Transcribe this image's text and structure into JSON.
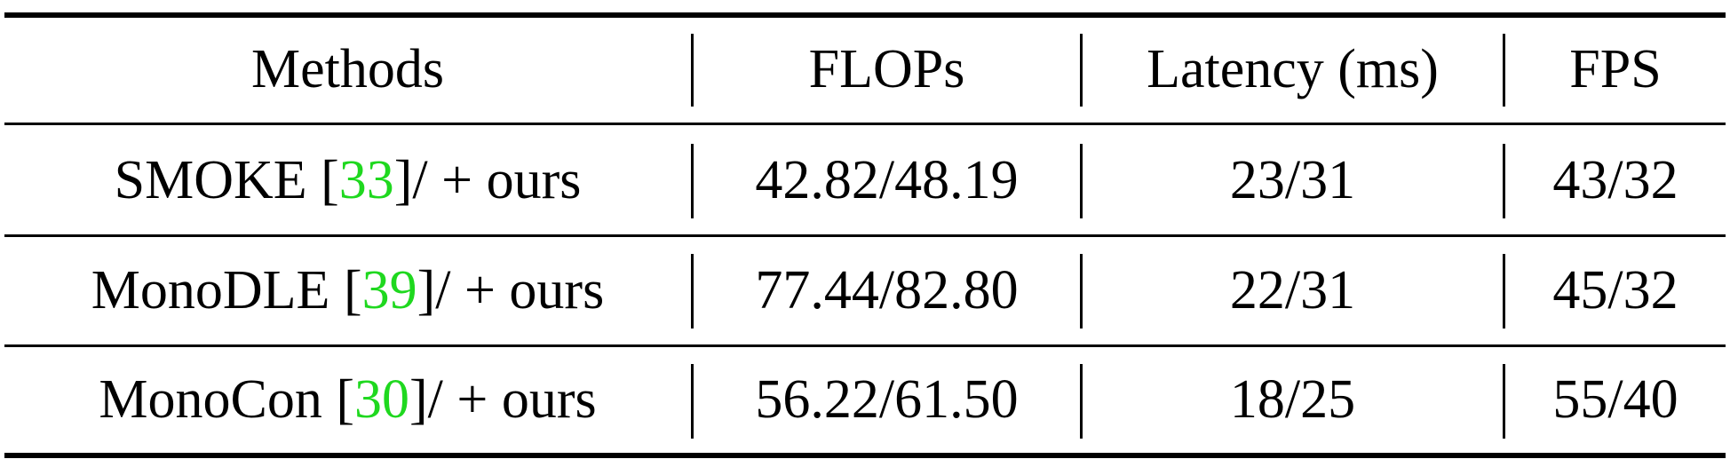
{
  "table": {
    "headers": [
      "Methods",
      "FLOPs",
      "Latency (ms)",
      "FPS"
    ],
    "rows": [
      {
        "method": "SMOKE",
        "cite": "33",
        "suffix": "]/ + ours",
        "flops": "42.82/48.19",
        "latency": "23/31",
        "fps": "43/32"
      },
      {
        "method": "MonoDLE",
        "cite": "39",
        "suffix": "]/ + ours",
        "flops": "77.44/82.80",
        "latency": "22/31",
        "fps": "45/32"
      },
      {
        "method": "MonoCon",
        "cite": "30",
        "suffix": "]/ + ours",
        "flops": "56.22/61.50",
        "latency": "18/25",
        "fps": "55/40"
      }
    ]
  },
  "colors": {
    "citation": "#1fd81f",
    "text": "#000000"
  }
}
